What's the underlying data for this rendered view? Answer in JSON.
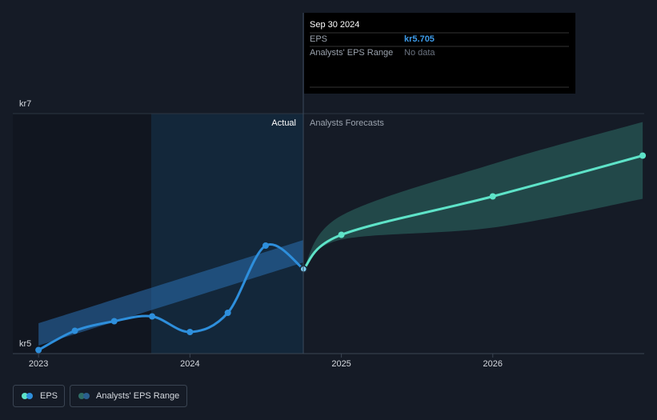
{
  "chart_data": {
    "type": "line",
    "region_labels": [
      "Actual",
      "Analysts Forecasts"
    ],
    "xlim": [
      2022.83,
      2027.0
    ],
    "xticks": [
      2023,
      2024,
      2025,
      2026
    ],
    "ylim": [
      5,
      7
    ],
    "yticks": [
      {
        "value": 5,
        "label": "kr5"
      },
      {
        "value": 7,
        "label": "kr7"
      }
    ],
    "series": [
      {
        "name": "EPS",
        "color": "#2e8fdc",
        "x": [
          2023.0,
          2023.24,
          2023.5,
          2023.75,
          2024.0,
          2024.25,
          2024.5,
          2024.75
        ],
        "values": [
          5.03,
          5.19,
          5.27,
          5.31,
          5.18,
          5.34,
          5.9,
          5.705
        ]
      }
    ],
    "forecast": {
      "color": "#5ee3c8",
      "x": [
        2024.75,
        2025.0,
        2026.0,
        2026.99
      ],
      "values": [
        5.705,
        5.99,
        6.31,
        6.65
      ]
    },
    "range": {
      "name": "Analysts' EPS Range",
      "color": "#2e6d66",
      "x": [
        2024.75,
        2025.0,
        2026.0,
        2026.99
      ],
      "low": [
        5.705,
        5.95,
        6.05,
        6.29
      ],
      "high": [
        5.705,
        6.15,
        6.58,
        6.93
      ]
    },
    "past_range": {
      "color": "#2a6fb0",
      "x": [
        2023.0,
        2024.75
      ],
      "low": [
        5.067,
        5.76
      ],
      "high": [
        5.253,
        5.947
      ]
    },
    "tooltip": {
      "date": "Sep 30 2024",
      "label": "EPS",
      "value": 5.705,
      "value_label": "kr5.705",
      "range_label": "Analysts' EPS Range",
      "range_value": "No data"
    }
  }
}
